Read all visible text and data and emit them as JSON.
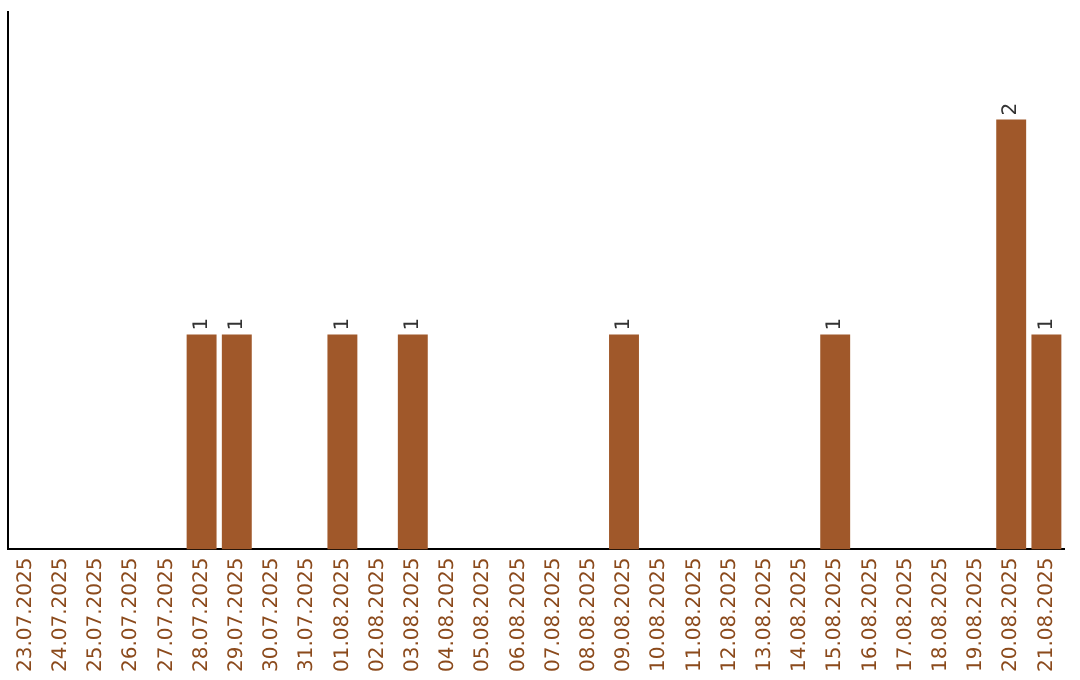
{
  "chart_data": {
    "type": "bar",
    "categories": [
      "23.07.2025",
      "24.07.2025",
      "25.07.2025",
      "26.07.2025",
      "27.07.2025",
      "28.07.2025",
      "29.07.2025",
      "30.07.2025",
      "31.07.2025",
      "01.08.2025",
      "02.08.2025",
      "03.08.2025",
      "04.08.2025",
      "05.08.2025",
      "06.08.2025",
      "07.08.2025",
      "08.08.2025",
      "09.08.2025",
      "10.08.2025",
      "11.08.2025",
      "12.08.2025",
      "13.08.2025",
      "14.08.2025",
      "15.08.2025",
      "16.08.2025",
      "17.08.2025",
      "18.08.2025",
      "19.08.2025",
      "20.08.2025",
      "21.08.2025"
    ],
    "values": [
      0,
      0,
      0,
      0,
      0,
      1,
      1,
      0,
      0,
      1,
      0,
      1,
      0,
      0,
      0,
      0,
      0,
      1,
      0,
      0,
      0,
      0,
      0,
      1,
      0,
      0,
      0,
      0,
      2,
      1
    ],
    "value_labels": [
      null,
      null,
      null,
      null,
      null,
      "1",
      "1",
      null,
      null,
      "1",
      null,
      "1",
      null,
      null,
      null,
      null,
      null,
      "1",
      null,
      null,
      null,
      null,
      null,
      "1",
      null,
      null,
      null,
      null,
      "2",
      "1"
    ],
    "color": "#a0582a",
    "grid": false,
    "legend": false,
    "tick_labels": "x"
  }
}
